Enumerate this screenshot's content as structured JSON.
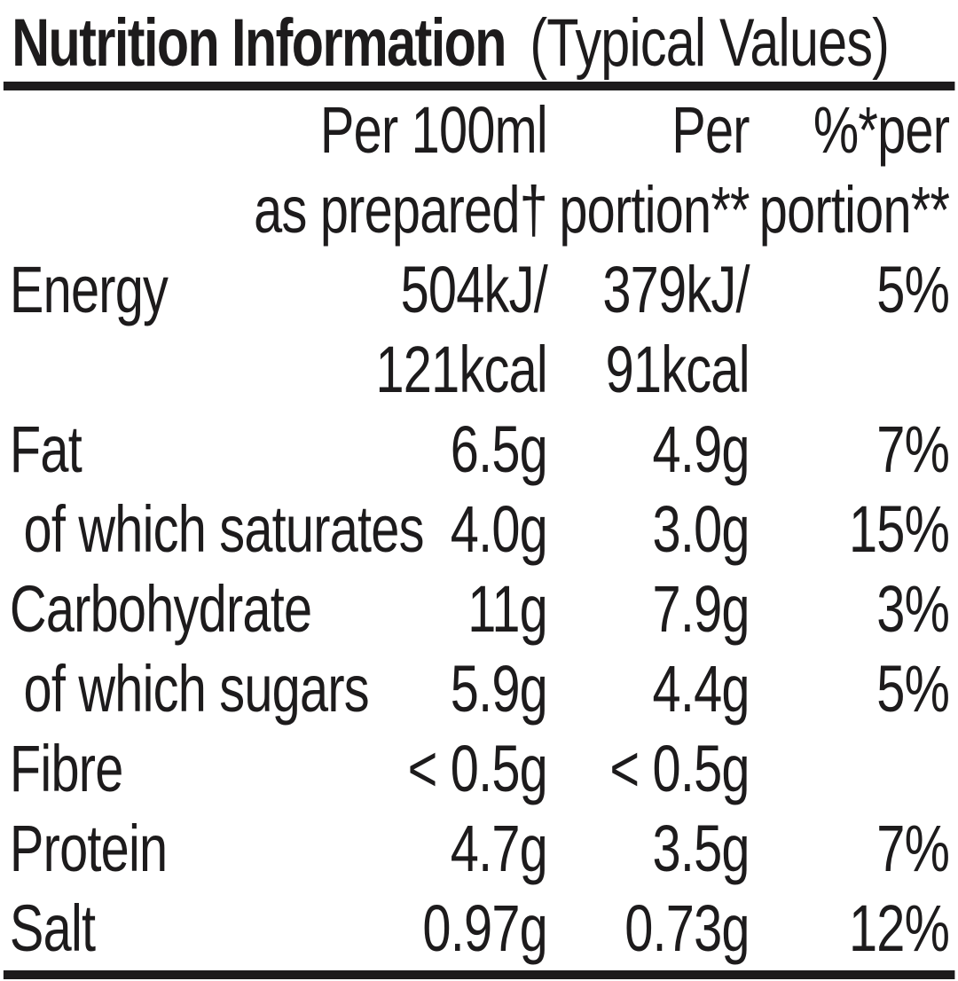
{
  "title": {
    "main": "Nutrition Information",
    "suffix": "(Typical Values)"
  },
  "table": {
    "header": {
      "per100": [
        "Per 100ml",
        "as prepared†"
      ],
      "portion": [
        "Per",
        "portion**"
      ],
      "pct": [
        "%*per",
        "portion**"
      ]
    },
    "rows": [
      {
        "label": "Energy",
        "per100": "504kJ/",
        "per100_line2": "121kcal",
        "portion": "379kJ/",
        "portion_line2": "91kcal",
        "pct": "5%"
      },
      {
        "label": "Fat",
        "per100": "6.5g",
        "portion": "4.9g",
        "pct": "7%"
      },
      {
        "label": "of which saturates",
        "per100": "4.0g",
        "portion": "3.0g",
        "pct": "15%"
      },
      {
        "label": "Carbohydrate",
        "per100": "11g",
        "portion": "7.9g",
        "pct": "3%"
      },
      {
        "label": "of which sugars",
        "per100": "5.9g",
        "portion": "4.4g",
        "pct": "5%"
      },
      {
        "label": "Fibre",
        "per100": "< 0.5g",
        "portion": "< 0.5g",
        "pct": ""
      },
      {
        "label": "Protein",
        "per100": "4.7g",
        "portion": "3.5g",
        "pct": "7%"
      },
      {
        "label": "Salt",
        "per100": "0.97g",
        "portion": "0.73g",
        "pct": "12%"
      }
    ]
  },
  "colors": {
    "background": "#ffffff",
    "text": "#1d1b1c",
    "rule": "#1d1b1c"
  }
}
